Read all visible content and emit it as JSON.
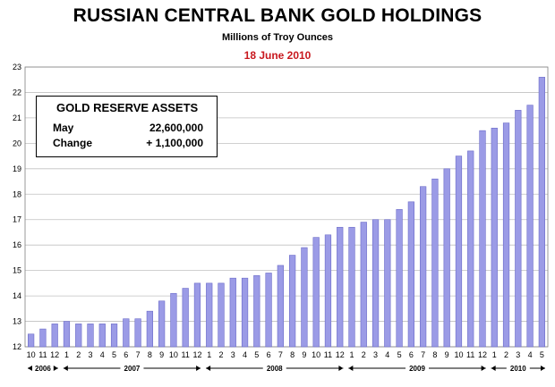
{
  "header": {
    "title": "RUSSIAN CENTRAL BANK GOLD HOLDINGS",
    "subtitle": "Millions of Troy Ounces",
    "date": "18 June 2010"
  },
  "info_box": {
    "title": "GOLD RESERVE ASSETS",
    "row1_label": "May",
    "row1_value": "22,600,000",
    "row2_label": "Change",
    "row2_value": "+ 1,100,000"
  },
  "colors": {
    "bar_fill": "#9b9be6",
    "bar_stroke": "#6a6ac8",
    "date_text": "#c8181e"
  },
  "chart_data": {
    "type": "bar",
    "title": "RUSSIAN CENTRAL BANK GOLD HOLDINGS",
    "subtitle": "Millions of Troy Ounces",
    "ylim": [
      12,
      23
    ],
    "yticks": [
      12,
      13,
      14,
      15,
      16,
      17,
      18,
      19,
      20,
      21,
      22,
      23
    ],
    "grid": true,
    "categories": [
      "10",
      "11",
      "12",
      "1",
      "2",
      "3",
      "4",
      "5",
      "6",
      "7",
      "8",
      "9",
      "10",
      "11",
      "12",
      "1",
      "2",
      "3",
      "4",
      "5",
      "6",
      "7",
      "8",
      "9",
      "10",
      "11",
      "12",
      "1",
      "2",
      "3",
      "4",
      "5",
      "6",
      "7",
      "8",
      "9",
      "10",
      "11",
      "12",
      "1",
      "2",
      "3",
      "4",
      "5"
    ],
    "values": [
      12.5,
      12.7,
      12.9,
      13.0,
      12.9,
      12.9,
      12.9,
      12.9,
      13.1,
      13.1,
      13.4,
      13.8,
      14.1,
      14.3,
      14.5,
      14.5,
      14.5,
      14.7,
      14.7,
      14.8,
      14.9,
      15.2,
      15.6,
      15.9,
      16.3,
      16.4,
      16.7,
      16.7,
      16.9,
      17.0,
      17.0,
      17.4,
      17.7,
      18.3,
      18.6,
      19.0,
      19.5,
      19.7,
      20.5,
      20.6,
      20.8,
      21.3,
      21.5,
      22.6
    ],
    "year_groups": [
      {
        "label": "2006",
        "count": 3
      },
      {
        "label": "2007",
        "count": 12
      },
      {
        "label": "2008",
        "count": 12
      },
      {
        "label": "2009",
        "count": 12
      },
      {
        "label": "2010",
        "count": 5
      }
    ]
  }
}
